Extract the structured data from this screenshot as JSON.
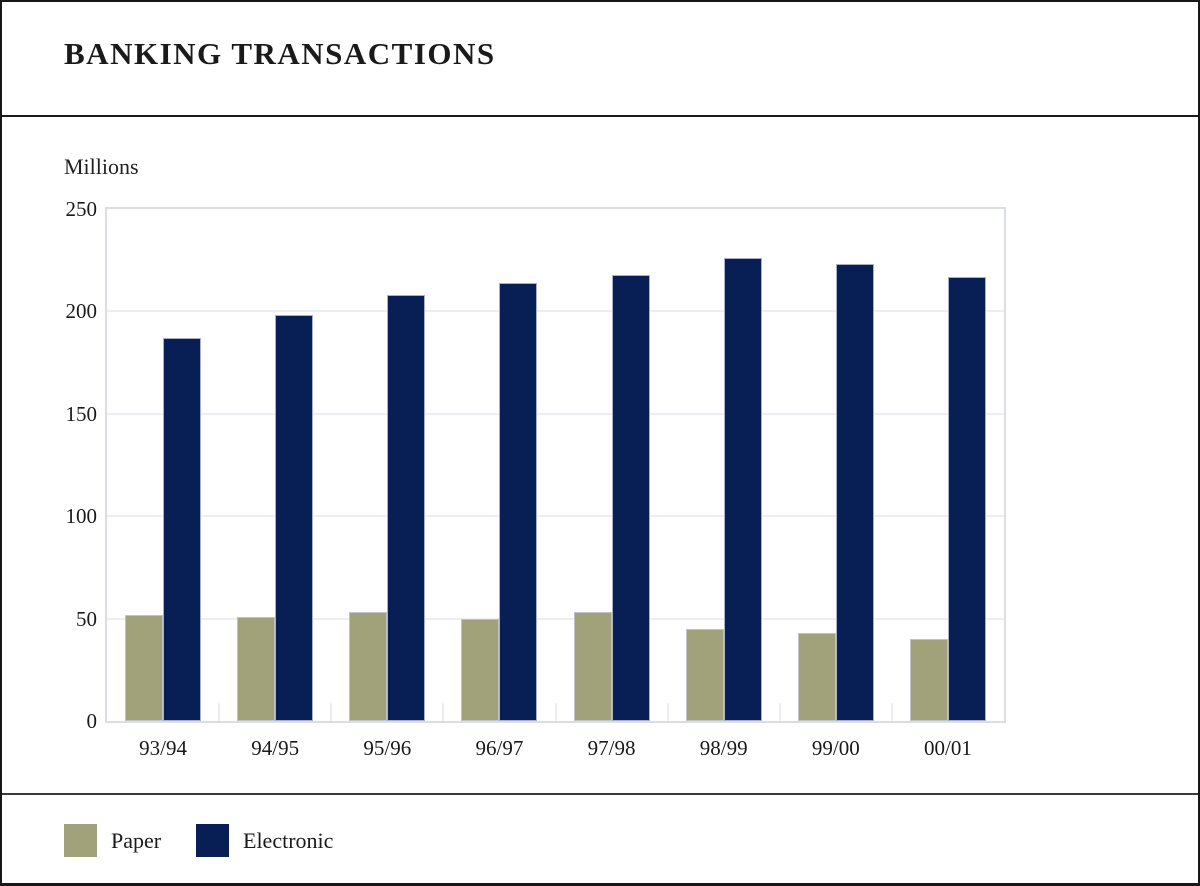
{
  "page": {
    "title": "BANKING TRANSACTIONS"
  },
  "axis": {
    "y_title": "Millions",
    "y_ticks": [
      "250",
      "200",
      "150",
      "100",
      "50",
      "0"
    ]
  },
  "legend": {
    "items": [
      {
        "label": "Paper",
        "color": "#a1a17a"
      },
      {
        "label": "Electronic",
        "color": "#081f55"
      }
    ]
  },
  "chart_data": {
    "type": "bar",
    "title": "BANKING TRANSACTIONS",
    "categories": [
      "93/94",
      "94/95",
      "95/96",
      "96/97",
      "97/98",
      "98/99",
      "99/00",
      "00/01"
    ],
    "series": [
      {
        "name": "Paper",
        "color": "#a1a17a",
        "values": [
          52,
          51,
          53,
          50,
          53,
          45,
          43,
          40
        ]
      },
      {
        "name": "Electronic",
        "color": "#081f55",
        "values": [
          187,
          198,
          208,
          214,
          218,
          226,
          223,
          217
        ]
      }
    ],
    "xlabel": "",
    "ylabel": "Millions",
    "ylim": [
      0,
      250
    ],
    "ytick_interval": 50,
    "grid": true,
    "legend_position": "bottom"
  },
  "style": {
    "gridline_color": "#edeef5",
    "plot_border_color": "#dbdde9",
    "text_color": "#1a1a1a"
  }
}
